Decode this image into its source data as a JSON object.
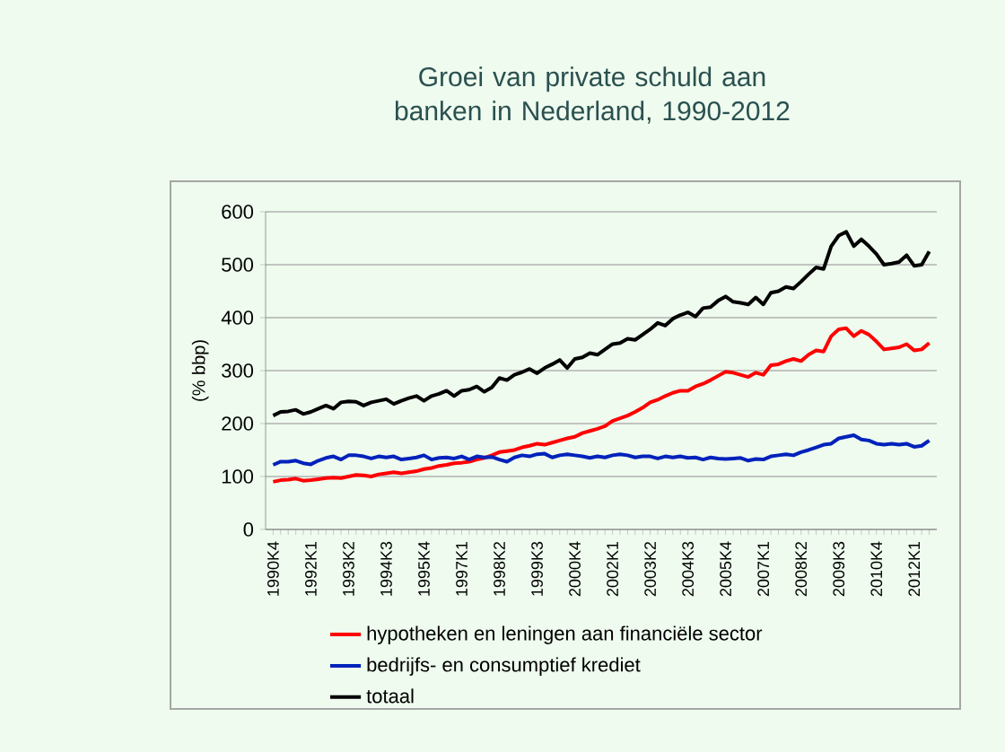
{
  "chart_data": {
    "type": "line",
    "title": "Groei van private schuld aan banken  in Nederland, 1990-2012",
    "ylabel": "(% bbp)",
    "categories": [
      "1990K4",
      null,
      null,
      null,
      null,
      "1992K1",
      null,
      null,
      null,
      null,
      "1993K2",
      null,
      null,
      null,
      null,
      "1994K3",
      null,
      null,
      null,
      null,
      "1995K4",
      null,
      null,
      null,
      null,
      "1997K1",
      null,
      null,
      null,
      null,
      "1998K2",
      null,
      null,
      null,
      null,
      "1999K3",
      null,
      null,
      null,
      null,
      "2000K4",
      null,
      null,
      null,
      null,
      "2002K1",
      null,
      null,
      null,
      null,
      "2003K2",
      null,
      null,
      null,
      null,
      "2004K3",
      null,
      null,
      null,
      null,
      "2005K4",
      null,
      null,
      null,
      null,
      "2007K1",
      null,
      null,
      null,
      null,
      "2008K2",
      null,
      null,
      null,
      null,
      "2009K3",
      null,
      null,
      null,
      null,
      "2010K4",
      null,
      null,
      null,
      null,
      "2012K1",
      null,
      null
    ],
    "series": [
      {
        "name": "hypotheken en leningen aan financiële sector",
        "color": "#ff0000",
        "values": [
          90,
          93,
          94,
          96,
          92,
          93,
          95,
          97,
          98,
          97,
          100,
          103,
          102,
          100,
          104,
          106,
          108,
          106,
          108,
          110,
          114,
          116,
          120,
          122,
          125,
          126,
          128,
          132,
          135,
          140,
          146,
          148,
          150,
          155,
          158,
          162,
          160,
          164,
          168,
          172,
          175,
          182,
          186,
          190,
          195,
          205,
          210,
          215,
          222,
          230,
          240,
          245,
          252,
          258,
          262,
          262,
          270,
          275,
          282,
          290,
          298,
          296,
          292,
          288,
          296,
          292,
          310,
          312,
          318,
          322,
          318,
          330,
          338,
          336,
          365,
          378,
          380,
          365,
          375,
          368,
          355,
          340,
          342,
          344,
          350,
          338,
          340,
          352
        ]
      },
      {
        "name": "bedrijfs- en consumptief krediet",
        "color": "#0022bb",
        "values": [
          122,
          128,
          128,
          130,
          125,
          123,
          130,
          135,
          138,
          132,
          140,
          140,
          138,
          134,
          138,
          136,
          138,
          132,
          134,
          136,
          140,
          132,
          135,
          136,
          134,
          138,
          132,
          138,
          136,
          137,
          132,
          128,
          136,
          140,
          138,
          142,
          143,
          136,
          140,
          142,
          140,
          138,
          135,
          138,
          136,
          140,
          142,
          140,
          136,
          138,
          138,
          134,
          138,
          136,
          138,
          135,
          136,
          132,
          136,
          134,
          133,
          134,
          135,
          130,
          133,
          132,
          138,
          140,
          142,
          140,
          146,
          150,
          155,
          160,
          162,
          172,
          175,
          178,
          170,
          168,
          162,
          160,
          162,
          160,
          162,
          156,
          158,
          168
        ]
      },
      {
        "name": "totaal",
        "color": "#000000",
        "values": [
          215,
          222,
          223,
          226,
          218,
          222,
          228,
          234,
          228,
          240,
          242,
          241,
          234,
          240,
          243,
          246,
          237,
          243,
          248,
          252,
          243,
          252,
          256,
          262,
          252,
          262,
          264,
          270,
          260,
          268,
          286,
          282,
          292,
          297,
          303,
          295,
          305,
          312,
          320,
          305,
          322,
          325,
          333,
          330,
          340,
          350,
          352,
          360,
          358,
          368,
          378,
          390,
          385,
          398,
          405,
          410,
          402,
          418,
          420,
          432,
          440,
          430,
          428,
          425,
          438,
          425,
          447,
          450,
          458,
          455,
          468,
          482,
          495,
          492,
          535,
          555,
          562,
          535,
          548,
          535,
          520,
          500,
          502,
          505,
          518,
          498,
          500,
          525
        ]
      }
    ],
    "ylim": [
      0,
      600
    ],
    "yticks": [
      0,
      100,
      200,
      300,
      400,
      500,
      600
    ],
    "grid": "y",
    "legend": "bottom",
    "line_style": "solid",
    "marker": "none"
  }
}
